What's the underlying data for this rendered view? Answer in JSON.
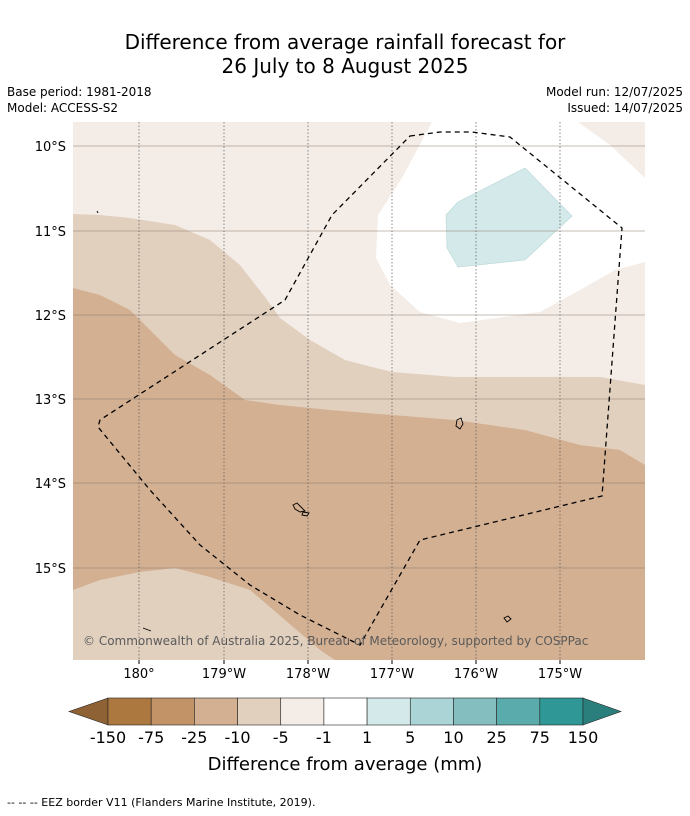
{
  "title": {
    "line1": "Difference from average rainfall forecast for",
    "line2": "26 July to 8 August 2025"
  },
  "meta": {
    "base_period": "Base period: 1981-2018",
    "model": "Model: ACCESS-S2",
    "model_run": "Model run: 12/07/2025",
    "issued": "Issued: 14/07/2025"
  },
  "map": {
    "lon_labels": [
      "180°",
      "179°W",
      "178°W",
      "177°W",
      "176°W",
      "175°W"
    ],
    "lat_labels": [
      "10°S",
      "11°S",
      "12°S",
      "13°S",
      "14°S",
      "15°S"
    ],
    "copyright": "© Commonwealth of Australia 2025, Bureau of Meteorology, supported by COSPPac"
  },
  "legend": {
    "tick_labels": [
      "-150",
      "-75",
      "-25",
      "-10",
      "-5",
      "-1",
      "1",
      "5",
      "10",
      "25",
      "75",
      "150"
    ],
    "title": "Difference from average (mm)",
    "colors": [
      "#8f6235",
      "#ad7840",
      "#c19366",
      "#d3b092",
      "#e2d0bf",
      "#f4ede7",
      "#ffffff",
      "#d4e9e9",
      "#aad4d5",
      "#84bebf",
      "#5aabac",
      "#2f9896",
      "#2a7f7d"
    ]
  },
  "footer": "--  --  -- EEZ border V11 (Flanders Marine Institute, 2019)."
}
